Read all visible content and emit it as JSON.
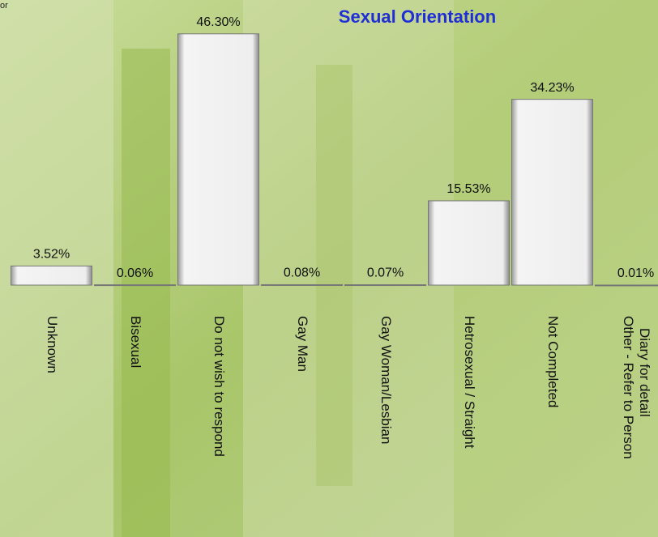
{
  "chart_data": {
    "type": "bar",
    "title": "Sexual Orientation",
    "corner_text": "or",
    "categories": [
      "Unknown",
      "Bisexual",
      "Do not wish to respond",
      "Gay Man",
      "Gay Woman/Lesbian",
      "Hetrosexual / Straight",
      "Not Completed",
      [
        "Other - Refer to Person",
        "Diary for detail"
      ]
    ],
    "values": [
      3.52,
      0.06,
      46.3,
      0.08,
      0.07,
      15.53,
      34.23,
      0.01
    ],
    "value_labels": [
      "3.52%",
      "0.06%",
      "46.30%",
      "0.08%",
      "0.07%",
      "15.53%",
      "34.23%",
      "0.01%"
    ],
    "color": "#e8e8e8",
    "ylim": [
      0,
      50
    ]
  }
}
